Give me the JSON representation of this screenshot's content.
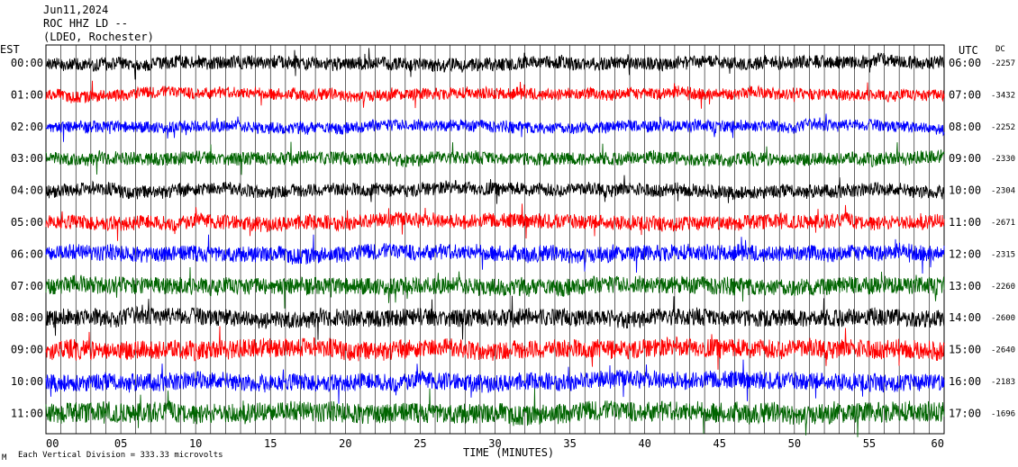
{
  "header": {
    "date": "Jun11,2024",
    "station": "ROC HHZ LD --",
    "location": "(LDEO, Rochester)"
  },
  "labels": {
    "left_tz": "EST",
    "right_tz": "UTC",
    "dc_header": "DC",
    "xaxis_title": "TIME (MINUTES)",
    "footnote": "Each Vertical Division = 333.33 microvolts",
    "corner_mark": "M"
  },
  "chart_data": {
    "type": "line",
    "title": "",
    "xlabel": "TIME (MINUTES)",
    "xlim": [
      0,
      60
    ],
    "x_ticks": [
      "00",
      "05",
      "10",
      "15",
      "20",
      "25",
      "30",
      "35",
      "40",
      "45",
      "50",
      "55",
      "60"
    ],
    "x_tick_values": [
      0,
      5,
      10,
      15,
      20,
      25,
      30,
      35,
      40,
      45,
      50,
      55,
      60
    ],
    "grid": "vertical-minute-lines",
    "rows": [
      {
        "left": "00:00",
        "right": "06:00",
        "dc": "-2257",
        "color": "#000000",
        "amp": 9
      },
      {
        "left": "01:00",
        "right": "07:00",
        "dc": "-3432",
        "color": "#ff0000",
        "amp": 8
      },
      {
        "left": "02:00",
        "right": "08:00",
        "dc": "-2252",
        "color": "#0000ff",
        "amp": 8
      },
      {
        "left": "03:00",
        "right": "09:00",
        "dc": "-2330",
        "color": "#006400",
        "amp": 9
      },
      {
        "left": "04:00",
        "right": "10:00",
        "dc": "-2304",
        "color": "#000000",
        "amp": 9
      },
      {
        "left": "05:00",
        "right": "11:00",
        "dc": "-2671",
        "color": "#ff0000",
        "amp": 10
      },
      {
        "left": "06:00",
        "right": "12:00",
        "dc": "-2315",
        "color": "#0000ff",
        "amp": 11
      },
      {
        "left": "07:00",
        "right": "13:00",
        "dc": "-2260",
        "color": "#006400",
        "amp": 12
      },
      {
        "left": "08:00",
        "right": "14:00",
        "dc": "-2600",
        "color": "#000000",
        "amp": 12
      },
      {
        "left": "09:00",
        "right": "15:00",
        "dc": "-2640",
        "color": "#ff0000",
        "amp": 13
      },
      {
        "left": "10:00",
        "right": "16:00",
        "dc": "-2183",
        "color": "#0000ff",
        "amp": 12
      },
      {
        "left": "11:00",
        "right": "17:00",
        "dc": "-1696",
        "color": "#006400",
        "amp": 14
      }
    ]
  }
}
